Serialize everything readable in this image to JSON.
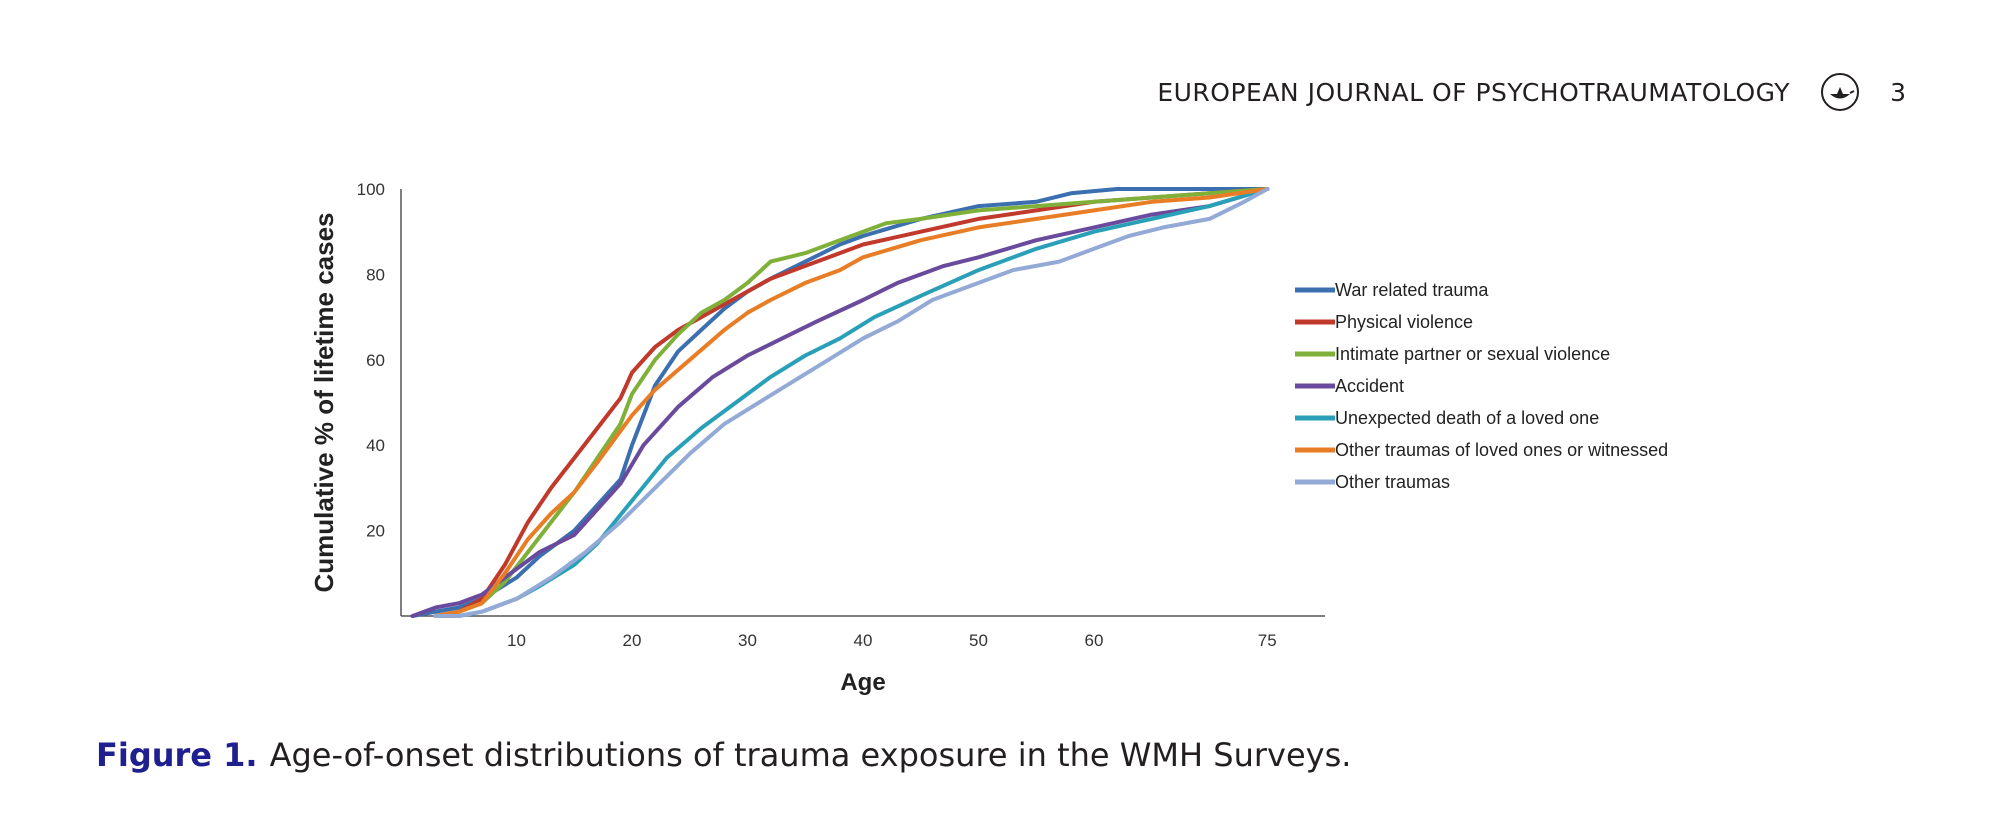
{
  "header": {
    "journal": "EUROPEAN JOURNAL OF PSYCHOTRAUMATOLOGY",
    "page_number": "3",
    "logo_icon": "lamp-logo-icon"
  },
  "caption": {
    "label": "Figure 1.",
    "text": "Age-of-onset distributions of trauma exposure in the WMH Surveys."
  },
  "chart_data": {
    "type": "line",
    "xlabel": "Age",
    "ylabel": "Cumulative % of lifetime cases",
    "xlim": [
      0,
      80
    ],
    "ylim": [
      0,
      100
    ],
    "x_ticks": [
      10,
      20,
      30,
      40,
      50,
      60,
      75
    ],
    "y_ticks": [
      20,
      40,
      60,
      80,
      100
    ],
    "grid": false,
    "legend_position": "right",
    "series": [
      {
        "name": "War related trauma",
        "color": "#3b6fb0",
        "x": [
          1,
          3,
          5,
          7,
          10,
          12,
          15,
          17,
          19,
          20,
          22,
          24,
          26,
          28,
          30,
          32,
          35,
          38,
          40,
          45,
          50,
          55,
          58,
          62,
          65,
          70,
          75
        ],
        "y": [
          0,
          1,
          2,
          4,
          9,
          14,
          20,
          26,
          32,
          40,
          54,
          62,
          67,
          72,
          76,
          79,
          83,
          87,
          89,
          93,
          96,
          97,
          99,
          100,
          100,
          100,
          100
        ]
      },
      {
        "name": "Physical violence",
        "color": "#c0392b",
        "x": [
          3,
          5,
          7,
          9,
          11,
          13,
          15,
          17,
          19,
          20,
          22,
          24,
          26,
          28,
          30,
          32,
          35,
          38,
          40,
          45,
          50,
          55,
          60,
          65,
          70,
          75
        ],
        "y": [
          0,
          1,
          4,
          12,
          22,
          30,
          37,
          44,
          51,
          57,
          63,
          67,
          70,
          73,
          76,
          79,
          82,
          85,
          87,
          90,
          93,
          95,
          97,
          98,
          99,
          100
        ]
      },
      {
        "name": "Intimate partner or sexual violence",
        "color": "#7fb13a",
        "x": [
          3,
          5,
          7,
          9,
          11,
          13,
          15,
          17,
          19,
          20,
          22,
          24,
          26,
          28,
          30,
          32,
          35,
          38,
          40,
          42,
          45,
          50,
          55,
          60,
          65,
          70,
          75
        ],
        "y": [
          0,
          1,
          3,
          8,
          15,
          22,
          29,
          37,
          45,
          52,
          60,
          66,
          71,
          74,
          78,
          83,
          85,
          88,
          90,
          92,
          93,
          95,
          96,
          97,
          98,
          99,
          100
        ]
      },
      {
        "name": "Accident",
        "color": "#6a4a9c",
        "x": [
          1,
          3,
          5,
          7,
          10,
          12,
          15,
          17,
          19,
          21,
          24,
          27,
          30,
          33,
          36,
          40,
          43,
          47,
          50,
          55,
          60,
          65,
          70,
          75
        ],
        "y": [
          0,
          2,
          3,
          5,
          11,
          15,
          19,
          25,
          31,
          40,
          49,
          56,
          61,
          65,
          69,
          74,
          78,
          82,
          84,
          88,
          91,
          94,
          96,
          100
        ]
      },
      {
        "name": "Unexpected death of a loved one",
        "color": "#2aa0b8",
        "x": [
          3,
          5,
          7,
          10,
          12,
          15,
          17,
          20,
          23,
          26,
          29,
          32,
          35,
          38,
          41,
          45,
          50,
          55,
          60,
          65,
          70,
          75
        ],
        "y": [
          0,
          0,
          1,
          4,
          7,
          12,
          17,
          27,
          37,
          44,
          50,
          56,
          61,
          65,
          70,
          75,
          81,
          86,
          90,
          93,
          96,
          100
        ]
      },
      {
        "name": "Other traumas of loved ones or witnessed",
        "color": "#e87d25",
        "x": [
          3,
          5,
          7,
          9,
          11,
          13,
          15,
          17,
          20,
          22,
          25,
          28,
          30,
          32,
          35,
          38,
          40,
          45,
          50,
          55,
          60,
          65,
          70,
          75
        ],
        "y": [
          0,
          1,
          3,
          10,
          18,
          24,
          29,
          36,
          47,
          53,
          60,
          67,
          71,
          74,
          78,
          81,
          84,
          88,
          91,
          93,
          95,
          97,
          98,
          100
        ]
      },
      {
        "name": "Other traumas",
        "color": "#93a9d6",
        "x": [
          3,
          5,
          7,
          10,
          13,
          16,
          19,
          22,
          25,
          28,
          31,
          34,
          37,
          40,
          43,
          46,
          50,
          53,
          57,
          60,
          63,
          66,
          70,
          73,
          75
        ],
        "y": [
          0,
          0,
          1,
          4,
          9,
          15,
          22,
          30,
          38,
          45,
          50,
          55,
          60,
          65,
          69,
          74,
          78,
          81,
          83,
          86,
          89,
          91,
          93,
          97,
          100
        ]
      }
    ]
  }
}
